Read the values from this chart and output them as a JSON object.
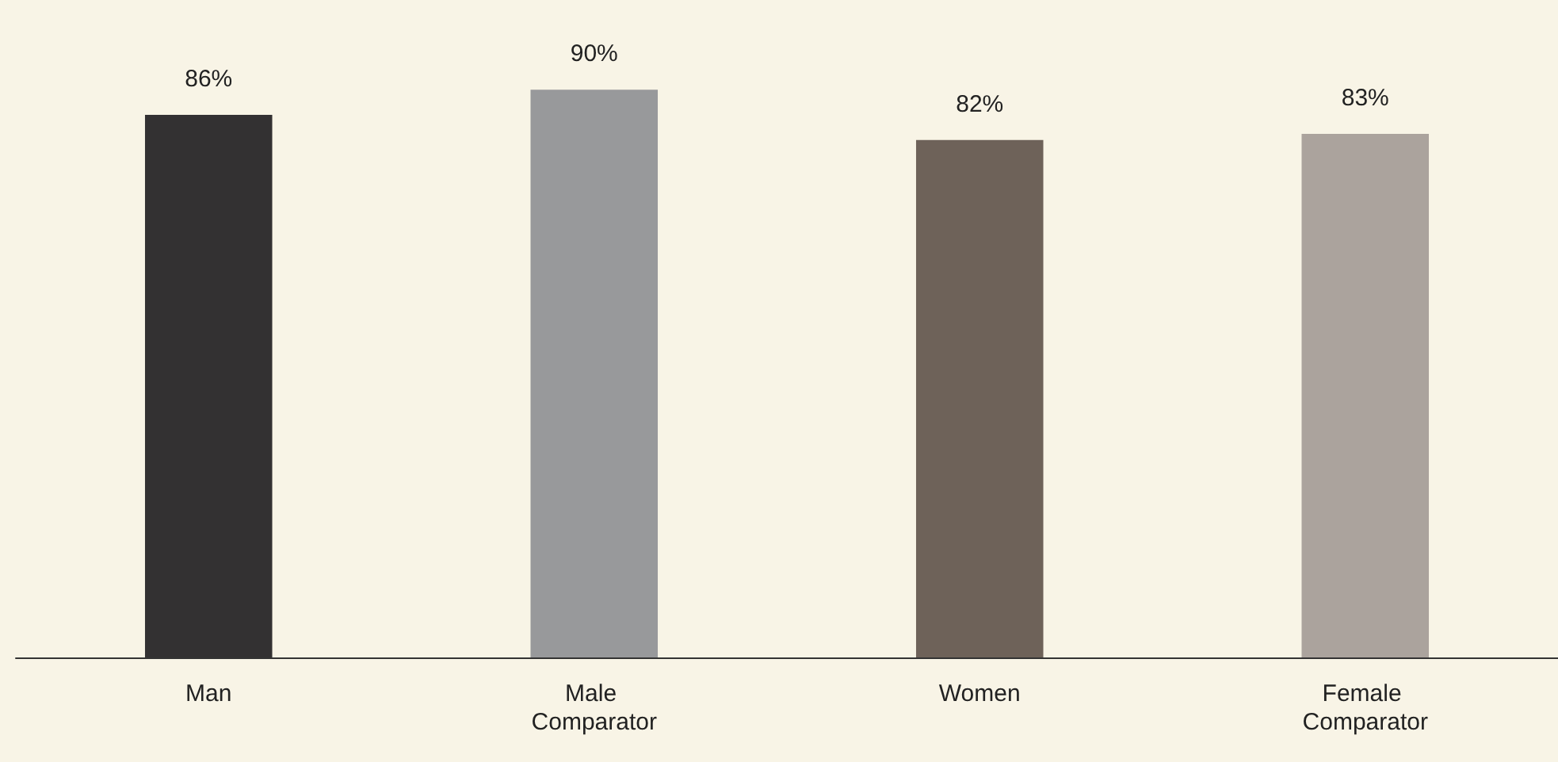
{
  "chart_data": {
    "type": "bar",
    "categories": [
      "Man",
      "Male Comparator",
      "Women",
      "Female Comparator"
    ],
    "values": [
      86,
      90,
      82,
      83
    ],
    "value_labels": [
      "86%",
      "90%",
      "82%",
      "83%"
    ],
    "colors": [
      "#333132",
      "#98999b",
      "#6e6259",
      "#aba39d"
    ]
  }
}
